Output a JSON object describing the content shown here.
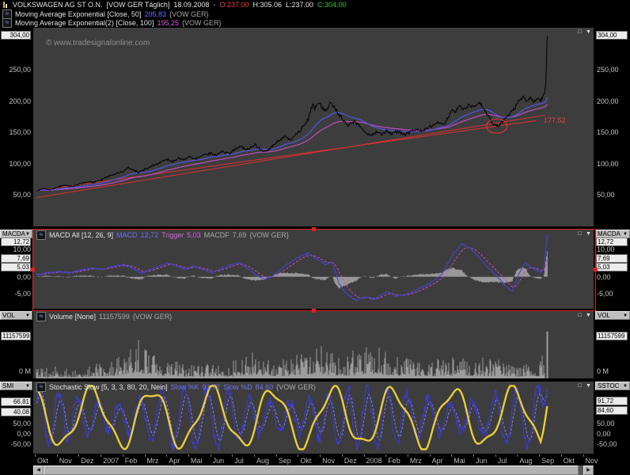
{
  "app": {
    "watermark": "© www.tradesignalonline.com",
    "title": {
      "symbol": "VOLKSWAGEN AG ST O.N.",
      "feed": "[VOW GER  Täglich]",
      "date": "18.09.2008",
      "sep": "-",
      "open": "O:237.00",
      "high": "H:305.06",
      "low": "L:237.00",
      "close": "C:304.00"
    }
  },
  "icons": {
    "indicator": "≈",
    "dropdown_arrow": "▼",
    "panel_restore": "□",
    "panel_collapse": "▼",
    "scroll_left": "◀",
    "scroll_right": "▶"
  },
  "legends": {
    "ema50": {
      "name": "Moving Average Exponential [Close, 50]",
      "value": "205,83",
      "scope": "{VOW GER}"
    },
    "ema100": {
      "name": "Moving Average Exponential(2) [Close, 100]",
      "value": "195,25",
      "scope": "{VOW GER}"
    }
  },
  "panels": {
    "price": {
      "current_value": "304,00",
      "trend_label": "177.52",
      "axis_ticks": [
        {
          "label": "250,00",
          "value": 250
        },
        {
          "label": "200,00",
          "value": 200
        },
        {
          "label": "150,00",
          "value": 150
        },
        {
          "label": "100,00",
          "value": 100
        },
        {
          "label": "50,00",
          "value": 50
        }
      ]
    },
    "macd": {
      "selector_left": "MACDA",
      "selector_right": "MACDA",
      "legend_name": "MACD All [12, 26, 9]",
      "legend_items": [
        {
          "label": "MACD",
          "value": "12,72"
        },
        {
          "label": "Trigger",
          "value": "5,03"
        },
        {
          "label": "MACDF",
          "value": "7,69"
        }
      ],
      "scope": "{VOW GER}",
      "value_boxes": [
        {
          "label": "12,72",
          "value": 12.72
        },
        {
          "label": "7,69",
          "value": 7.69
        },
        {
          "label": "5,03",
          "value": 5.03
        }
      ],
      "axis_ticks": [
        {
          "label": "10,00",
          "value": 10
        },
        {
          "label": "0,00",
          "value": 0
        },
        {
          "label": "-5,00",
          "value": -5
        }
      ]
    },
    "volume": {
      "selector_left": "VOL",
      "selector_right": "VOL",
      "legend_name": "Volume [None]",
      "legend_value": "11157599",
      "scope": "{VOW GER}",
      "value_box": "11157599",
      "axis_zero": "0 M"
    },
    "stochastic": {
      "selector_left": "SMI",
      "selector_right": "SSTOC",
      "legend_name": "Stochastic Slow [5, 3, 3, 80, 20, Nein]",
      "legend_items": [
        {
          "label": "Slow %K",
          "value": "91,72"
        },
        {
          "label": "Slow %D",
          "value": "84,60"
        }
      ],
      "scope": "{VOW GER}",
      "boxes_left": [
        "66,81",
        "40,08"
      ],
      "boxes_right": [
        "91,72",
        "84,60"
      ],
      "axis_ticks": [
        {
          "label": "50,00"
        },
        {
          "label": "0,00"
        },
        {
          "label": "-50,00"
        }
      ]
    }
  },
  "xaxis": {
    "labels": [
      "Okt",
      "Nov",
      "Dez",
      "2007",
      "Feb",
      "Mrz",
      "Apr",
      "Mai",
      "Jun",
      "Jul",
      "Aug",
      "Sep",
      "Okt",
      "Nov",
      "Dez",
      "2008",
      "Feb",
      "Mrz",
      "Apr",
      "Mai",
      "Jun",
      "Jul",
      "Aug",
      "Sep",
      "Okt",
      "Nov"
    ]
  },
  "chart_data": [
    {
      "id": "price",
      "type": "line",
      "title": "VOLKSWAGEN AG ST O.N. — Täglich (daily close)",
      "x_axis": {
        "unit": "months",
        "start": "Okt 2006",
        "end": "Nov 2008"
      },
      "y_range": [
        0,
        317
      ],
      "last_bar": {
        "date": "18.09.2008",
        "open": 237.0,
        "high": 305.06,
        "low": 237.0,
        "close": 304.0
      },
      "close_anchors": [
        [
          0,
          57
        ],
        [
          0.3,
          60
        ],
        [
          0.6,
          59
        ],
        [
          1,
          63
        ],
        [
          1.3,
          66
        ],
        [
          1.6,
          64
        ],
        [
          2,
          68
        ],
        [
          2.3,
          71
        ],
        [
          2.6,
          70
        ],
        [
          3,
          75
        ],
        [
          3.3,
          80
        ],
        [
          3.6,
          84
        ],
        [
          4,
          88
        ],
        [
          4.2,
          94
        ],
        [
          4.4,
          90
        ],
        [
          4.7,
          86
        ],
        [
          5,
          92
        ],
        [
          5.3,
          97
        ],
        [
          5.6,
          101
        ],
        [
          6,
          107
        ],
        [
          6.2,
          103
        ],
        [
          6.5,
          109
        ],
        [
          6.8,
          106
        ],
        [
          7,
          111
        ],
        [
          7.3,
          108
        ],
        [
          7.6,
          114
        ],
        [
          8,
          117
        ],
        [
          8.2,
          113
        ],
        [
          8.5,
          120
        ],
        [
          8.8,
          116
        ],
        [
          9,
          122
        ],
        [
          9.3,
          127
        ],
        [
          9.6,
          123
        ],
        [
          10,
          130
        ],
        [
          10.2,
          124
        ],
        [
          10.4,
          119
        ],
        [
          10.7,
          126
        ],
        [
          11,
          136
        ],
        [
          11.3,
          143
        ],
        [
          11.6,
          139
        ],
        [
          12,
          152
        ],
        [
          12.2,
          160
        ],
        [
          12.4,
          170
        ],
        [
          12.6,
          196
        ],
        [
          12.7,
          188
        ],
        [
          12.9,
          199
        ],
        [
          13,
          192
        ],
        [
          13.2,
          185
        ],
        [
          13.4,
          196
        ],
        [
          13.6,
          190
        ],
        [
          13.8,
          179
        ],
        [
          14,
          170
        ],
        [
          14.2,
          161
        ],
        [
          14.5,
          167
        ],
        [
          14.8,
          158
        ],
        [
          15,
          151
        ],
        [
          15.2,
          145
        ],
        [
          15.5,
          150
        ],
        [
          15.8,
          147
        ],
        [
          16,
          153
        ],
        [
          16.2,
          148
        ],
        [
          16.5,
          152
        ],
        [
          16.8,
          146
        ],
        [
          17,
          150
        ],
        [
          17.3,
          155
        ],
        [
          17.6,
          152
        ],
        [
          18,
          160
        ],
        [
          18.3,
          166
        ],
        [
          18.6,
          163
        ],
        [
          19,
          188
        ],
        [
          19.1,
          182
        ],
        [
          19.3,
          192
        ],
        [
          19.5,
          186
        ],
        [
          19.7,
          194
        ],
        [
          20,
          190
        ],
        [
          20.2,
          197
        ],
        [
          20.4,
          189
        ],
        [
          20.6,
          176
        ],
        [
          20.8,
          166
        ],
        [
          21,
          159
        ],
        [
          21.2,
          165
        ],
        [
          21.4,
          172
        ],
        [
          21.6,
          180
        ],
        [
          21.8,
          188
        ],
        [
          22,
          199
        ],
        [
          22.2,
          208
        ],
        [
          22.35,
          198
        ],
        [
          22.5,
          206
        ],
        [
          22.65,
          199
        ],
        [
          22.8,
          204
        ],
        [
          23,
          201
        ],
        [
          23.1,
          207
        ],
        [
          23.18,
          212
        ],
        [
          23.24,
          230
        ],
        [
          23.3,
          304
        ]
      ],
      "overlays": [
        {
          "name": "Moving Average Exponential [Close, 50]",
          "color": "#5555e8",
          "last_value": 205.83
        },
        {
          "name": "Moving Average Exponential(2) [Close, 100]",
          "color": "#c04ec0",
          "last_value": 195.25
        }
      ],
      "annotations": {
        "trendlines": [
          {
            "from": [
              0,
              46
            ],
            "to": [
              23.2,
              177.52
            ],
            "color": "#e03030",
            "label": "177.52"
          },
          {
            "from": [
              0,
              57
            ],
            "to": [
              22.8,
              168.8
            ],
            "color": "#e03030"
          }
        ],
        "ellipse": {
          "t": 21.0,
          "value": 160,
          "color": "#e03030"
        }
      }
    },
    {
      "id": "macd",
      "type": "line",
      "name": "MACD All [12, 26, 9]",
      "y_range": [
        -9.5,
        14
      ],
      "axis_tick_values": [
        10,
        0,
        -5
      ],
      "last_values": {
        "macd": 12.72,
        "trigger": 5.03,
        "macdf": 7.69
      },
      "series_styles": {
        "macd": "blue solid",
        "trigger": "magenta dashed",
        "macdf": "gray histogram"
      },
      "macd_anchors": [
        [
          0,
          0.6
        ],
        [
          0.5,
          1.2
        ],
        [
          1,
          1.6
        ],
        [
          1.5,
          1.1
        ],
        [
          2,
          1.9
        ],
        [
          2.5,
          2.5
        ],
        [
          3,
          2.2
        ],
        [
          3.5,
          3.1
        ],
        [
          4,
          3.6
        ],
        [
          4.4,
          2.4
        ],
        [
          4.8,
          1.1
        ],
        [
          5.2,
          2.2
        ],
        [
          5.6,
          3.2
        ],
        [
          6,
          4.1
        ],
        [
          6.4,
          3.2
        ],
        [
          6.8,
          2.2
        ],
        [
          7.2,
          3.1
        ],
        [
          7.6,
          2.1
        ],
        [
          8,
          1.2
        ],
        [
          8.4,
          2.4
        ],
        [
          8.8,
          3.4
        ],
        [
          9.2,
          4.1
        ],
        [
          9.6,
          2.6
        ],
        [
          10,
          0.6
        ],
        [
          10.4,
          -0.8
        ],
        [
          10.8,
          0.4
        ],
        [
          11.2,
          2.6
        ],
        [
          11.6,
          4.4
        ],
        [
          12,
          6
        ],
        [
          12.4,
          7
        ],
        [
          12.8,
          5.2
        ],
        [
          13.2,
          3.6
        ],
        [
          13.5,
          4.4
        ],
        [
          13.8,
          -2
        ],
        [
          14.2,
          -5.5
        ],
        [
          14.6,
          -7
        ],
        [
          15,
          -6
        ],
        [
          15.4,
          -6.8
        ],
        [
          16,
          -4.4
        ],
        [
          16.4,
          -5.8
        ],
        [
          17,
          -5
        ],
        [
          17.5,
          -3.4
        ],
        [
          18,
          -1.8
        ],
        [
          18.5,
          0.8
        ],
        [
          19,
          6.6
        ],
        [
          19.4,
          9.8
        ],
        [
          19.8,
          8.4
        ],
        [
          20.2,
          5.6
        ],
        [
          20.6,
          2.8
        ],
        [
          21,
          0.2
        ],
        [
          21.4,
          -2.8
        ],
        [
          21.7,
          -4.4
        ],
        [
          22,
          0.8
        ],
        [
          22.3,
          4.2
        ],
        [
          22.6,
          2.6
        ],
        [
          23,
          1.4
        ],
        [
          23.15,
          2.2
        ],
        [
          23.3,
          12.72
        ]
      ]
    },
    {
      "id": "volume",
      "type": "bar",
      "name": "Volume [None]",
      "unit": "shares",
      "y_range": [
        0,
        16000000
      ],
      "axis_tick_labels": [
        "0 M"
      ],
      "last_value": 11157599,
      "envelope_anchors_millions": [
        [
          0,
          2.5
        ],
        [
          1,
          3
        ],
        [
          2,
          2.5
        ],
        [
          3,
          4
        ],
        [
          3.8,
          6
        ],
        [
          4.3,
          10
        ],
        [
          4.8,
          9
        ],
        [
          5.3,
          8
        ],
        [
          5.8,
          5
        ],
        [
          6.5,
          4
        ],
        [
          7.5,
          3.5
        ],
        [
          8.5,
          3.5
        ],
        [
          9.3,
          5
        ],
        [
          10,
          7
        ],
        [
          10.5,
          5
        ],
        [
          11,
          4.5
        ],
        [
          12,
          6
        ],
        [
          12.6,
          8
        ],
        [
          13.2,
          7
        ],
        [
          14,
          5
        ],
        [
          14.8,
          7
        ],
        [
          15.2,
          9
        ],
        [
          16,
          6.5
        ],
        [
          17,
          5
        ],
        [
          18,
          4
        ],
        [
          19,
          6
        ],
        [
          20,
          4
        ],
        [
          21,
          5
        ],
        [
          22,
          3.5
        ],
        [
          23,
          4.5
        ],
        [
          23.3,
          11.157
        ]
      ]
    },
    {
      "id": "stochastic",
      "type": "line",
      "name": "Stochastic Slow [5, 3, 3, 80, 20, Nein]",
      "axis_tick_values": [
        50,
        0,
        -50
      ],
      "value_range": [
        0,
        100
      ],
      "last_values": {
        "slow_k": 91.72,
        "slow_d": 84.6,
        "smi": 66.81,
        "smi_signal": 40.08
      },
      "series_styles": {
        "slow_k": "blue solid",
        "slow_d": "blue dashed",
        "smi": "yellow thick"
      }
    }
  ]
}
